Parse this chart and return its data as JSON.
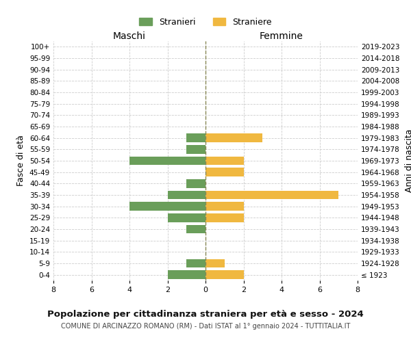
{
  "age_groups": [
    "100+",
    "95-99",
    "90-94",
    "85-89",
    "80-84",
    "75-79",
    "70-74",
    "65-69",
    "60-64",
    "55-59",
    "50-54",
    "45-49",
    "40-44",
    "35-39",
    "30-34",
    "25-29",
    "20-24",
    "15-19",
    "10-14",
    "5-9",
    "0-4"
  ],
  "birth_years": [
    "≤ 1923",
    "1924-1928",
    "1929-1933",
    "1934-1938",
    "1939-1943",
    "1944-1948",
    "1949-1953",
    "1954-1958",
    "1959-1963",
    "1964-1968",
    "1969-1973",
    "1974-1978",
    "1979-1983",
    "1984-1988",
    "1989-1993",
    "1994-1998",
    "1999-2003",
    "2004-2008",
    "2009-2013",
    "2014-2018",
    "2019-2023"
  ],
  "maschi": [
    0,
    0,
    0,
    0,
    0,
    0,
    0,
    0,
    1,
    1,
    4,
    0,
    1,
    2,
    4,
    2,
    1,
    0,
    0,
    1,
    2
  ],
  "femmine": [
    0,
    0,
    0,
    0,
    0,
    0,
    0,
    0,
    3,
    0,
    2,
    2,
    0,
    7,
    2,
    2,
    0,
    0,
    0,
    1,
    2
  ],
  "maschi_color": "#6a9e5a",
  "femmine_color": "#f0b840",
  "title_main": "Popolazione per cittadinanza straniera per età e sesso - 2024",
  "title_sub": "COMUNE DI ARCINAZZO ROMANO (RM) - Dati ISTAT al 1° gennaio 2024 - TUTTITALIA.IT",
  "legend_maschi": "Stranieri",
  "legend_femmine": "Straniere",
  "xlabel_left": "Maschi",
  "xlabel_right": "Femmine",
  "ylabel_left": "Fasce di età",
  "ylabel_right": "Anni di nascita",
  "xlim": 8,
  "bg_color": "#ffffff",
  "grid_color": "#cccccc",
  "bar_height": 0.75
}
